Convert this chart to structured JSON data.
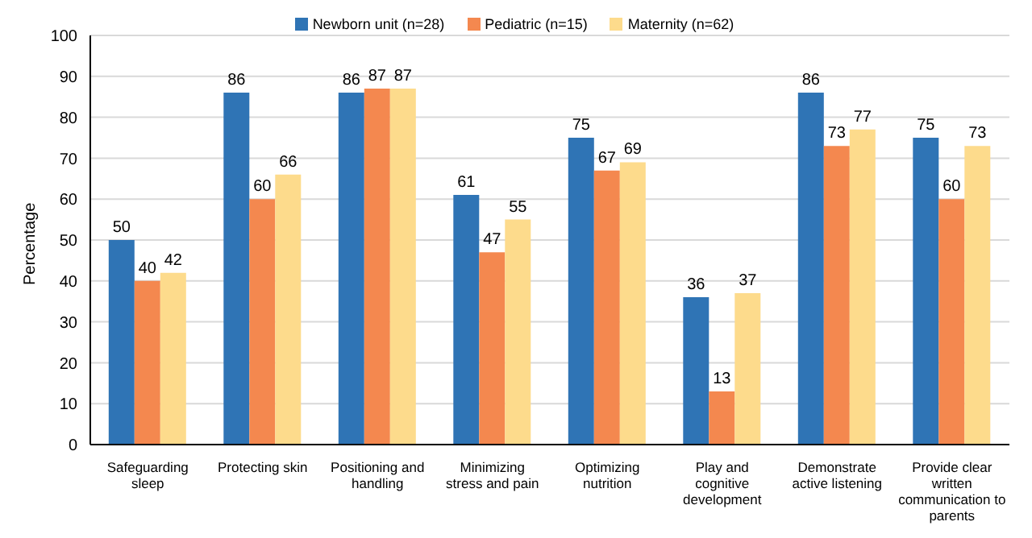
{
  "chart_data": {
    "type": "bar",
    "ylabel": "Percentage",
    "categories": [
      "Safeguarding sleep",
      "Protecting skin",
      "Positioning and handling",
      "Minimizing stress and pain",
      "Optimizing nutrition",
      "Play and cognitive development",
      "Demonstrate active listening",
      "Provide clear written communication to parents"
    ],
    "series": [
      {
        "name": "Newborn unit (n=28)",
        "color": "#2f74b5",
        "values": [
          50,
          86,
          86,
          61,
          75,
          36,
          86,
          75
        ]
      },
      {
        "name": "Pediatric (n=15)",
        "color": "#f4884f",
        "values": [
          40,
          60,
          87,
          47,
          67,
          13,
          73,
          60
        ]
      },
      {
        "name": "Maternity (n=62)",
        "color": "#fddb8c",
        "values": [
          42,
          66,
          87,
          55,
          69,
          37,
          77,
          73
        ]
      }
    ],
    "ylim": [
      0,
      100
    ],
    "yticks": [
      0,
      10,
      20,
      30,
      40,
      50,
      60,
      70,
      80,
      90,
      100
    ],
    "grid": "y",
    "legend": "top",
    "data_labels": true
  }
}
